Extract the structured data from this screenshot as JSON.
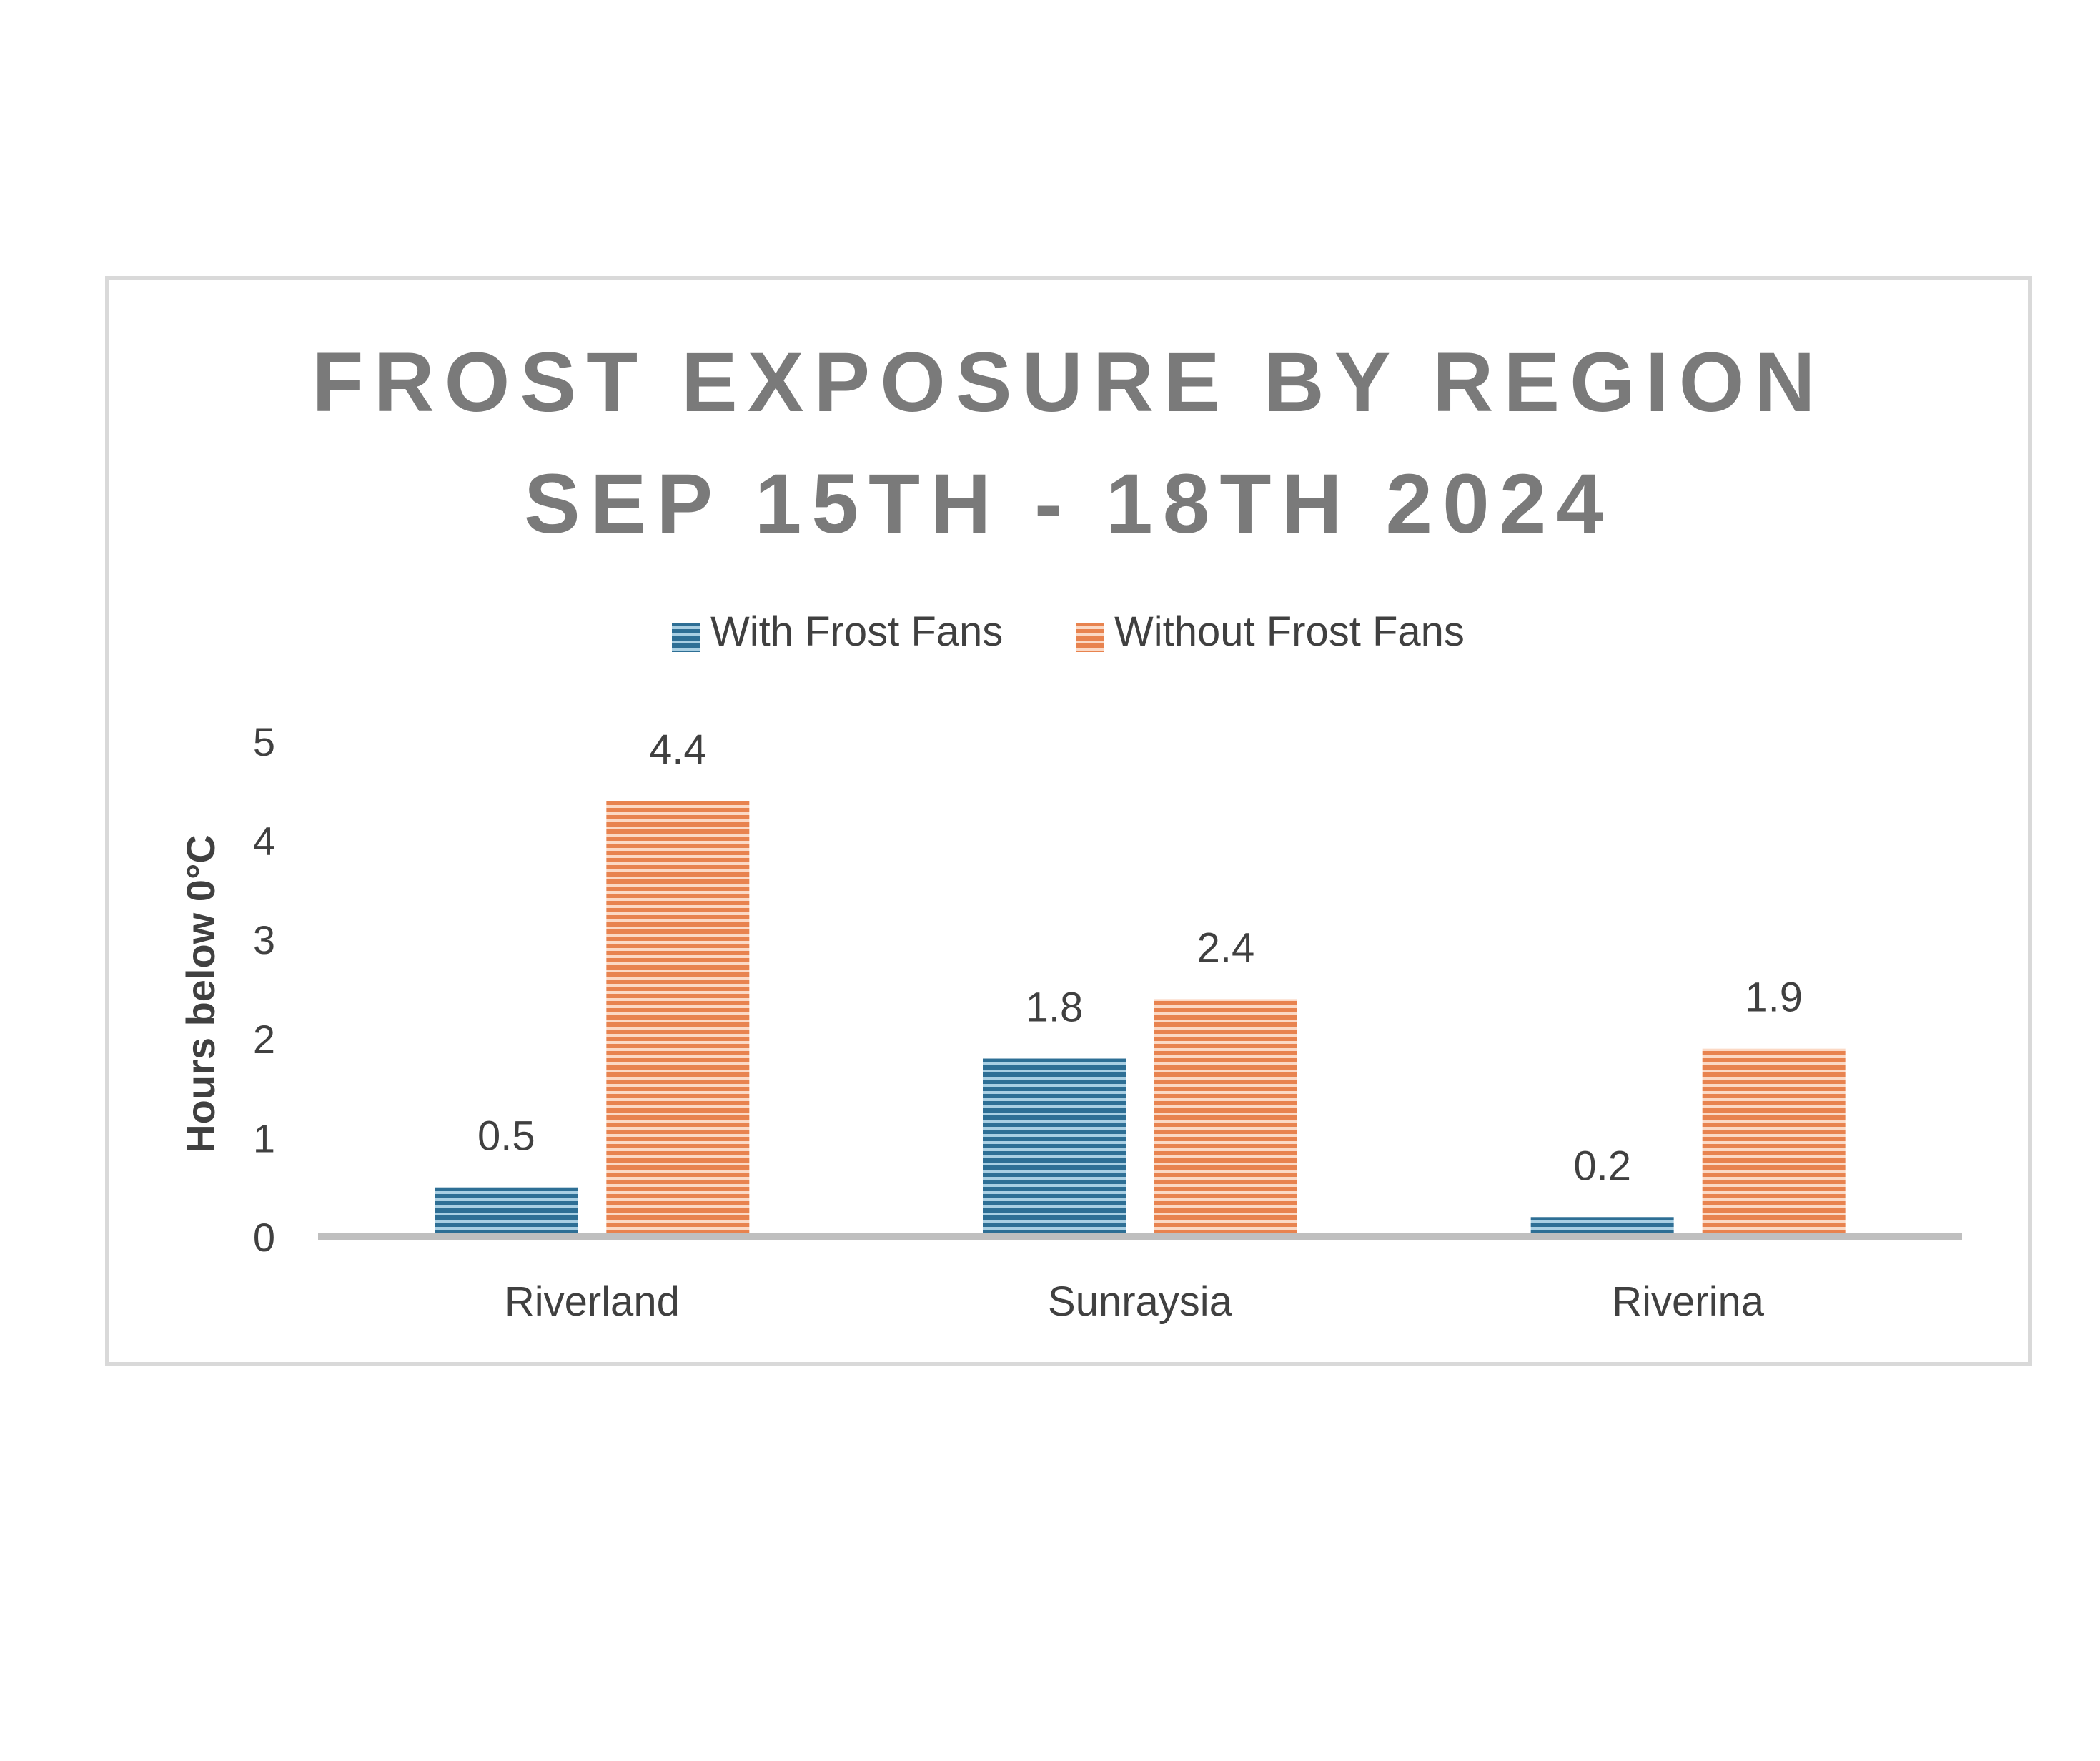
{
  "colors": {
    "with_fans": "#2E6F95",
    "with_fans_light": "#A9CFE3",
    "without_fans": "#E8834F",
    "without_fans_light": "#FBD9C5",
    "title": "#7A7A7A",
    "text": "#404040",
    "axis": "#BFBFBF",
    "frame": "#D9D9D9"
  },
  "chart_data": {
    "type": "bar",
    "title_lines": [
      "FROST EXPOSURE BY REGION",
      "SEP 15TH - 18TH 2024"
    ],
    "xlabel": "",
    "ylabel": "Hours below 0°C",
    "ylim": [
      0,
      5
    ],
    "yticks": [
      "0",
      "1",
      "2",
      "3",
      "4",
      "5"
    ],
    "categories": [
      "Riverland",
      "Sunraysia",
      "Riverina"
    ],
    "series": [
      {
        "name": "With Frost Fans",
        "values": [
          0.5,
          1.8,
          0.2
        ],
        "labels": [
          "0.5",
          "1.8",
          "0.2"
        ]
      },
      {
        "name": "Without Frost Fans",
        "values": [
          4.4,
          2.4,
          1.9
        ],
        "labels": [
          "4.4",
          "2.4",
          "1.9"
        ]
      }
    ],
    "legend_position": "top",
    "grid": false
  }
}
